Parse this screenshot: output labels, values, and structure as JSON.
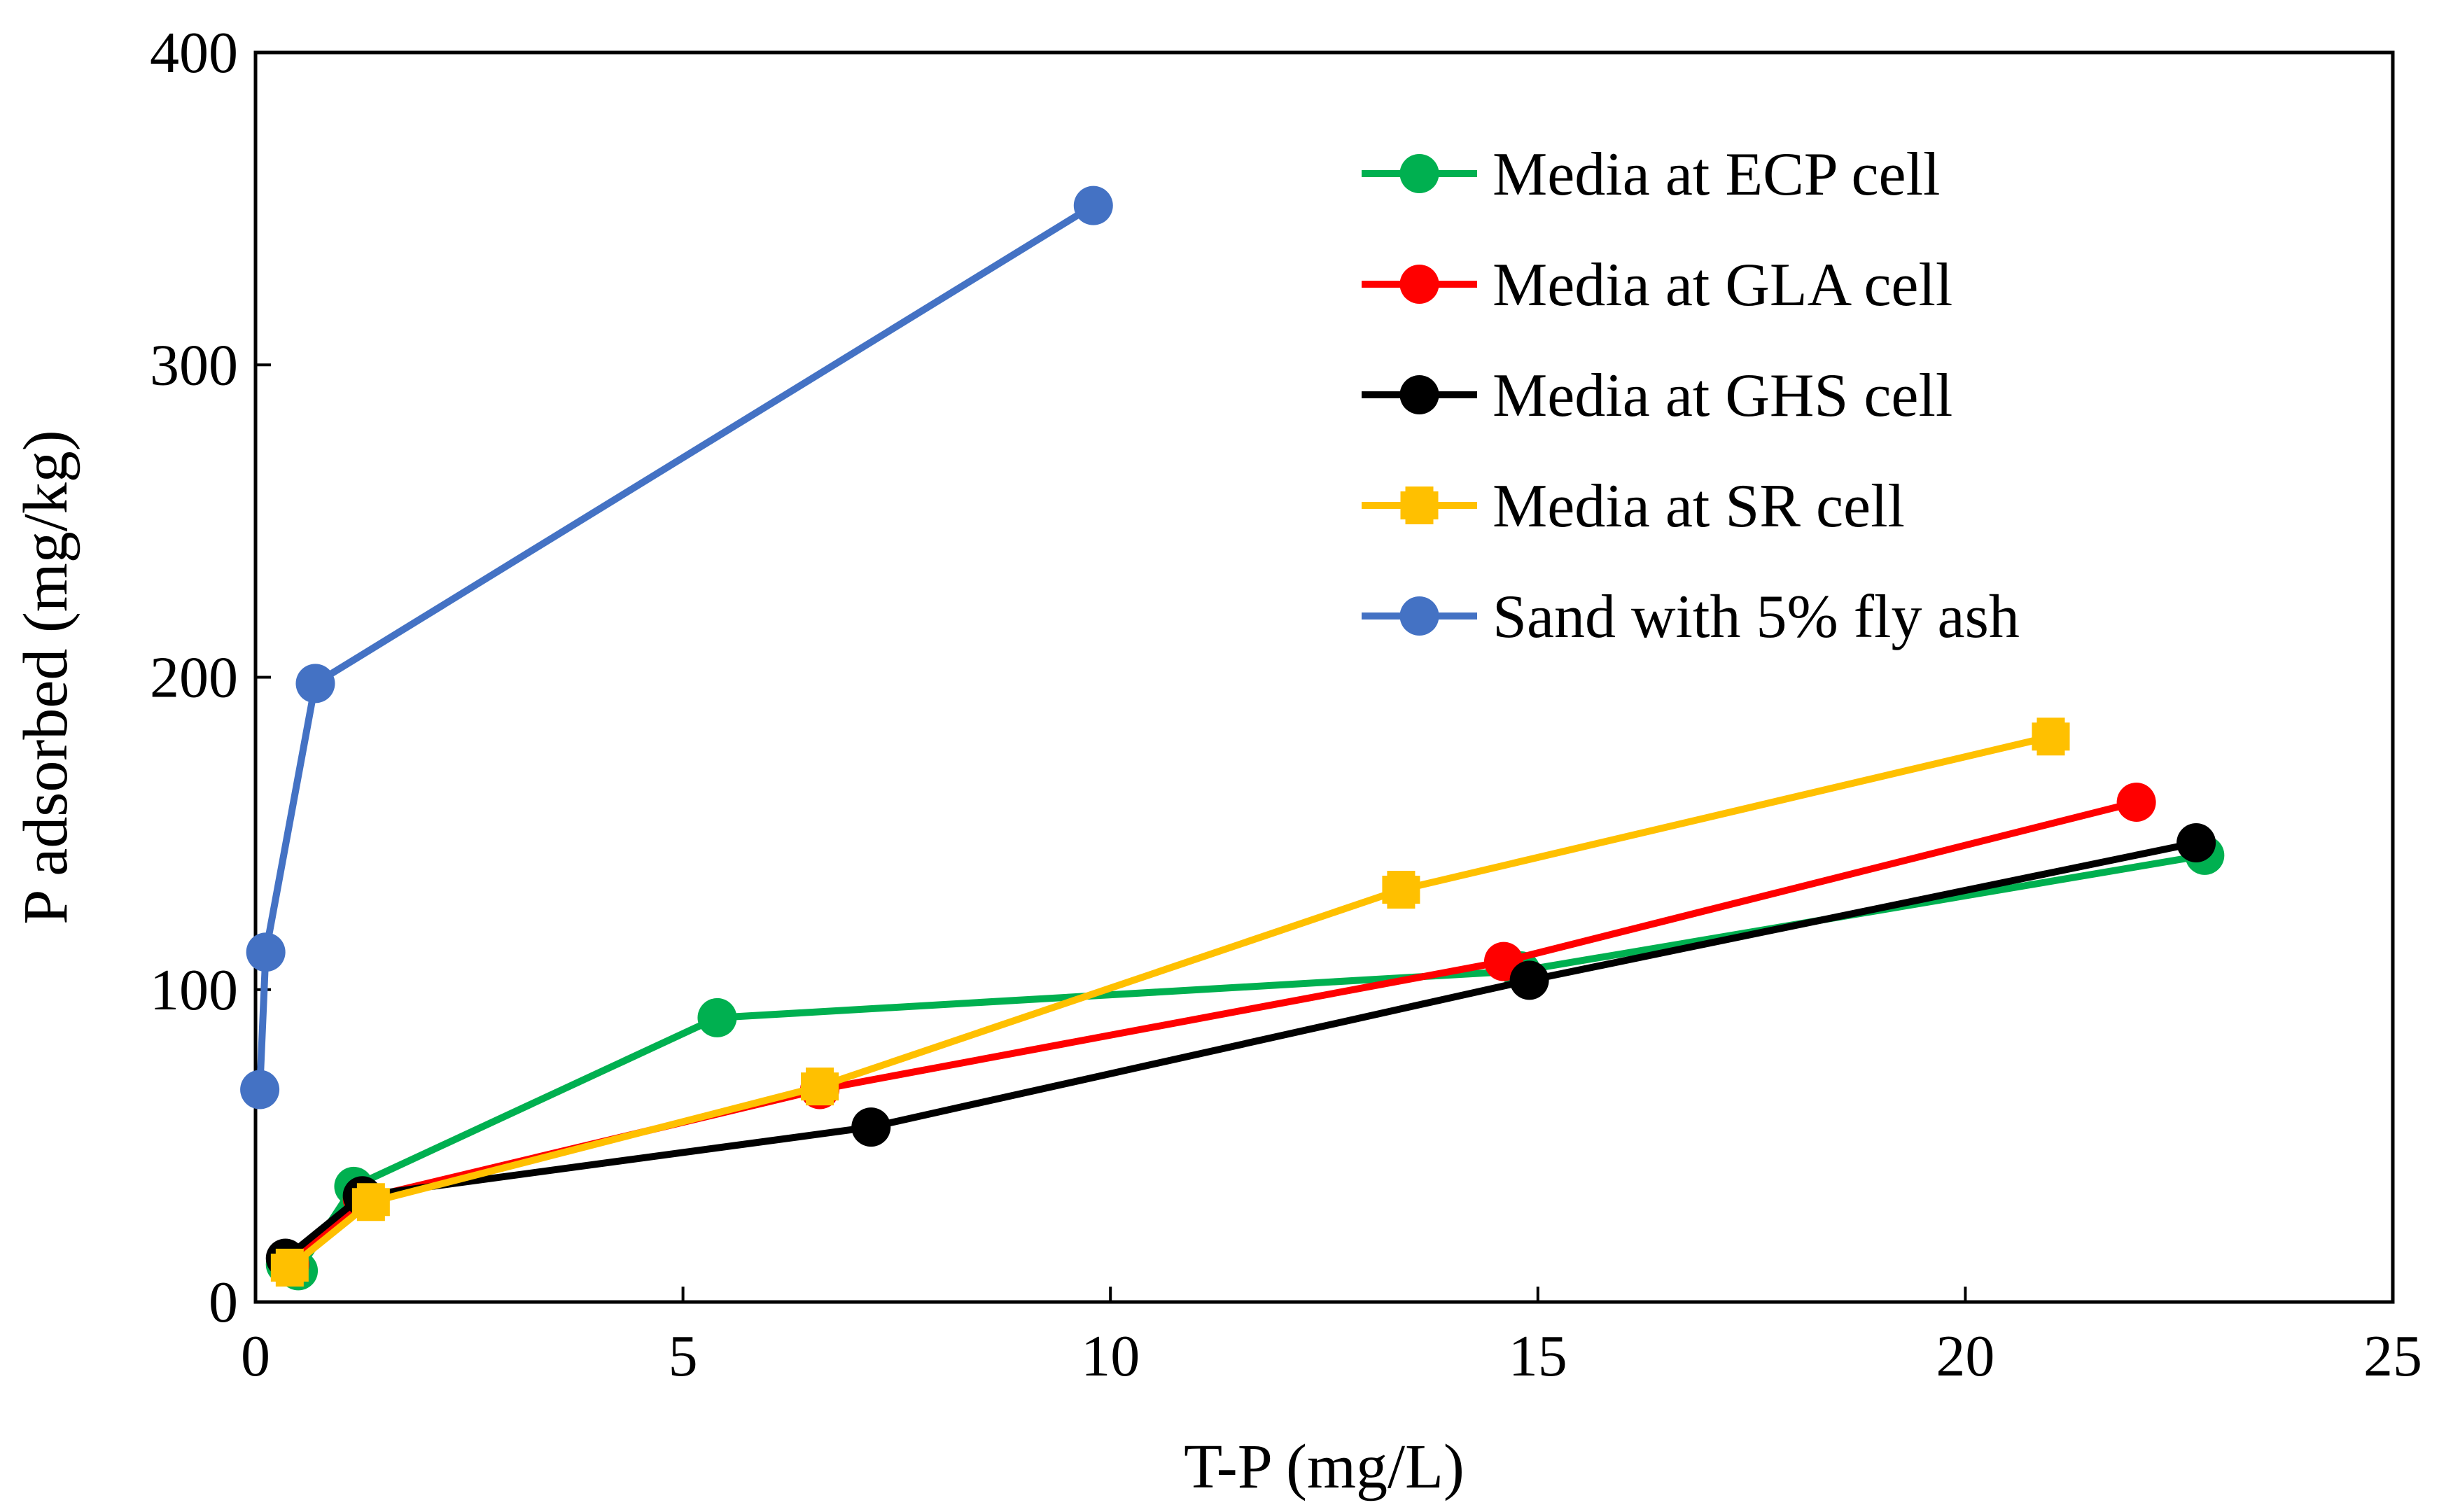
{
  "chart_data": {
    "type": "line",
    "title": "",
    "xlabel": "T-P (mg/L)",
    "ylabel": "P adsorbed (mg/kg)",
    "xlim": [
      0,
      25
    ],
    "ylim": [
      0,
      400
    ],
    "xticks": [
      0,
      5,
      10,
      15,
      20,
      25
    ],
    "yticks": [
      0,
      100,
      200,
      300,
      400
    ],
    "xtick_labels": [
      "0",
      "5",
      "10",
      "15",
      "20",
      "25"
    ],
    "ytick_labels": [
      "0",
      "100",
      "200",
      "300",
      "400"
    ],
    "grid": false,
    "legend_position": "top-right",
    "series": [
      {
        "name": "Media at ECP cell",
        "color": "#00b050",
        "marker": "circle",
        "x": [
          0.35,
          0.5,
          1.15,
          5.4,
          14.8,
          22.8
        ],
        "y": [
          12,
          10,
          37,
          91,
          106,
          143
        ]
      },
      {
        "name": "Media at GLA cell",
        "color": "#ff0000",
        "marker": "circle",
        "x": [
          0.4,
          1.25,
          6.6,
          14.6,
          22.0
        ],
        "y": [
          12,
          33,
          68,
          109,
          160
        ]
      },
      {
        "name": "Media at GHS cell",
        "color": "#000000",
        "marker": "circle",
        "x": [
          0.35,
          1.25,
          7.2,
          14.9,
          22.7
        ],
        "y": [
          14,
          34,
          56,
          103,
          147
        ]
      },
      {
        "name": "Media at SR cell",
        "color": "#ffc000",
        "marker": "cross",
        "x": [
          0.4,
          1.35,
          6.6,
          13.4,
          21.0
        ],
        "y": [
          11,
          32,
          69,
          132,
          181
        ]
      },
      {
        "name": "Sand with 5% fly ash",
        "color": "#4472c4",
        "marker": "circle",
        "x": [
          0.05,
          0.12,
          0.7,
          9.8
        ],
        "y": [
          68,
          112,
          198,
          351
        ]
      }
    ]
  }
}
